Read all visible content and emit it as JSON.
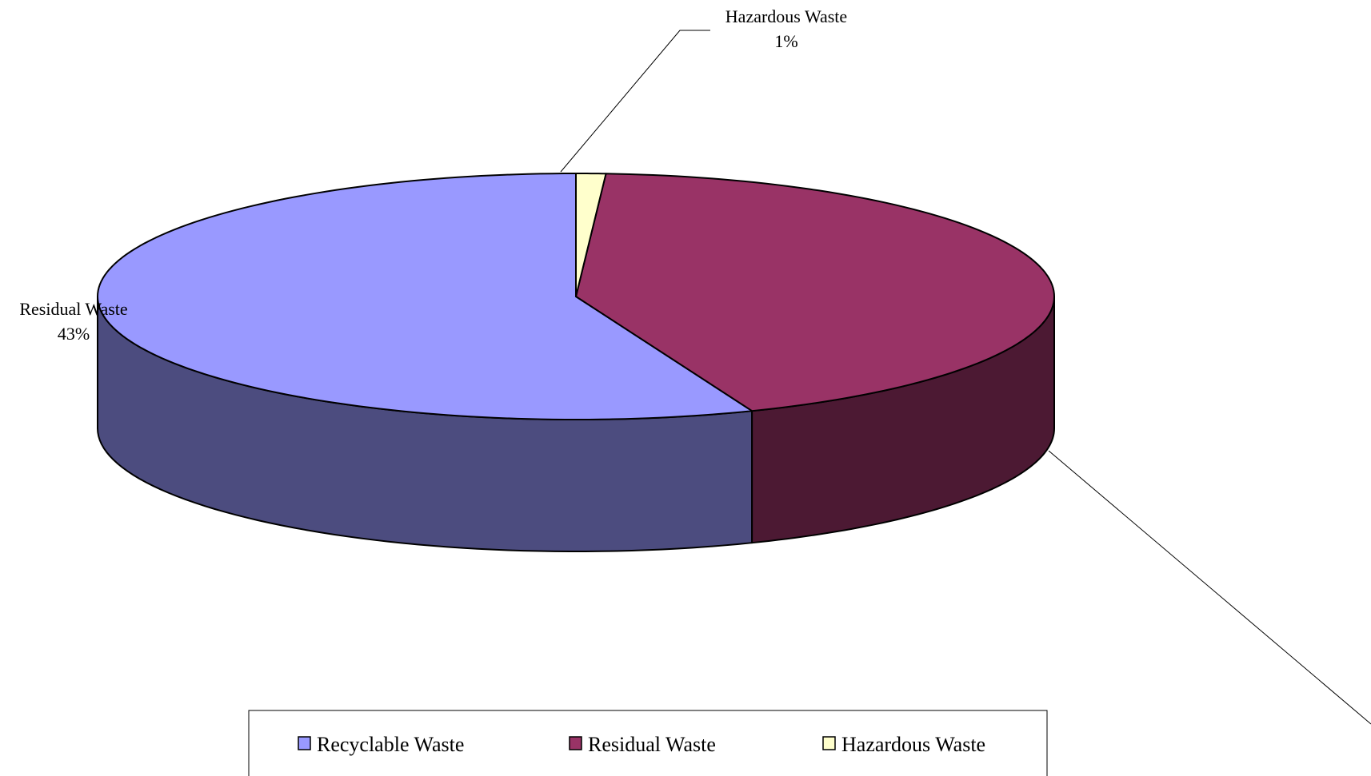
{
  "chart_data": {
    "type": "pie",
    "style": "3d",
    "categories": [
      "Recyclable Waste",
      "Residual Waste",
      "Hazardous Waste"
    ],
    "values": [
      56,
      43,
      1
    ],
    "unit": "%",
    "colors": {
      "top": [
        "#9999ff",
        "#993366",
        "#ffffcc"
      ],
      "side": [
        "#4c4c7f",
        "#4c1933",
        "#7f7f66"
      ]
    },
    "data_labels": [
      {
        "category": "",
        "value": ""
      },
      {
        "category": "Residual Waste",
        "value": "43%"
      },
      {
        "category": "Hazardous Waste",
        "value": "1%"
      }
    ],
    "legend": {
      "position": "bottom",
      "entries": [
        "Recyclable Waste",
        "Residual Waste",
        "Hazardous Waste"
      ]
    }
  }
}
